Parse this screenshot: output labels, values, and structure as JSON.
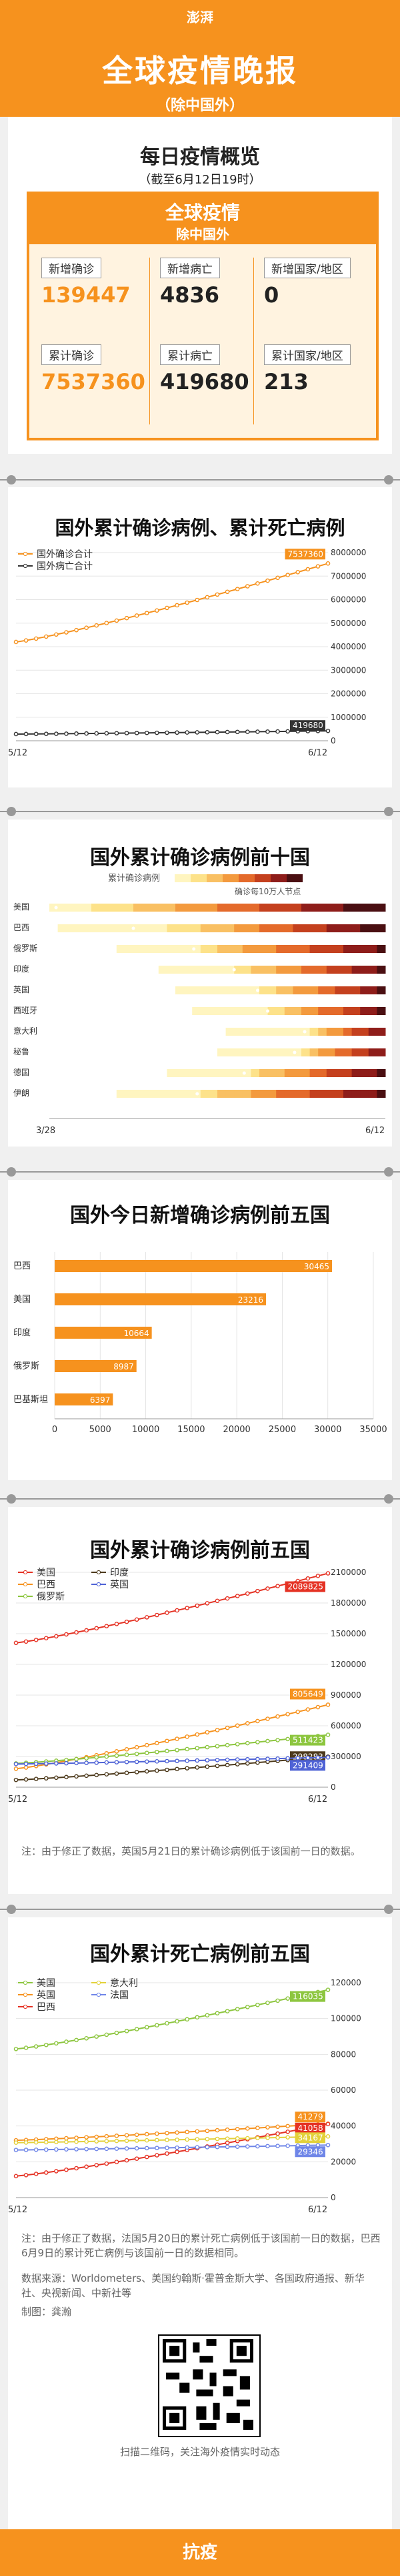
{
  "header": {
    "logo": "澎湃",
    "title": "全球疫情晚报",
    "subtitle": "（除中国外）",
    "footer": "抗疫"
  },
  "overview": {
    "title": "每日疫情概览",
    "asof": "（截至6月12日19时）",
    "box_title": "全球疫情",
    "box_sub": "除中国外",
    "stats": [
      {
        "label": "新增确诊",
        "value": "139447",
        "color": "#f6921e"
      },
      {
        "label": "新增病亡",
        "value": "4836",
        "color": "#333333"
      },
      {
        "label": "新增国家/地区",
        "value": "0",
        "color": "#333333"
      },
      {
        "label": "累计确诊",
        "value": "7537360",
        "color": "#f6921e"
      },
      {
        "label": "累计病亡",
        "value": "419680",
        "color": "#333333"
      },
      {
        "label": "累计国家/地区",
        "value": "213",
        "color": "#333333"
      }
    ]
  },
  "sections": {
    "cumulative": "国外累计确诊病例、累计死亡病例",
    "top10": "国外累计确诊病例前十国",
    "today5": "国外今日新增确诊病例前五国",
    "conf5": "国外累计确诊病例前五国",
    "death5": "国外累计死亡病例前五国"
  },
  "notes": {
    "conf_note": "注：由于修正了数据，英国5月21日的累计确诊病例低于该国前一日的数据。",
    "death_note": "注：由于修正了数据，法国5月20日的累计死亡病例低于该国前一日的数据，巴西6月9日的累计死亡病例与该国前一日的数据相同。",
    "source": "数据来源：Worldometers、美国约翰斯·霍普金斯大学、各国政府通报、新华社、央视新闻、中新社等",
    "author": "制图：龚瀚",
    "qr_caption": "扫描二维码，关注海外疫情实时动态"
  },
  "chart_data": [
    {
      "type": "line",
      "x_labels": [
        "5/12",
        "6/12"
      ],
      "points": 32,
      "ylim": [
        0,
        8000000
      ],
      "yticks": [
        0,
        1000000,
        2000000,
        3000000,
        4000000,
        5000000,
        6000000,
        7000000,
        8000000
      ],
      "series": [
        {
          "name": "国外确诊合计",
          "color": "#f6921e",
          "start": 4200000,
          "end": 7537360,
          "end_label": "7537360"
        },
        {
          "name": "国外病亡合计",
          "color": "#333333",
          "start": 285000,
          "end": 419680,
          "end_label": "419680"
        }
      ]
    },
    {
      "type": "heatmap",
      "title": "累计确诊病例",
      "note": "确诊每10万人节点",
      "x_labels": [
        "3/28",
        "6/12"
      ],
      "categories": [
        "美国",
        "巴西",
        "俄罗斯",
        "印度",
        "英国",
        "西班牙",
        "意大利",
        "秘鲁",
        "德国",
        "伊朗"
      ],
      "thresholds": [
        0.0,
        0.25,
        0.43,
        0.55,
        0.62,
        0.65,
        0.76,
        0.73,
        0.58,
        0.44
      ],
      "legend_colors": [
        "#fff5c0",
        "#fde28a",
        "#f9c063",
        "#f39a3e",
        "#e46a2b",
        "#c4401e",
        "#8e1d1a",
        "#4a0f12"
      ]
    },
    {
      "type": "bar",
      "orientation": "horizontal",
      "categories": [
        "巴西",
        "美国",
        "印度",
        "俄罗斯",
        "巴基斯坦"
      ],
      "values": [
        30465,
        23216,
        10664,
        8987,
        6397
      ],
      "xlim": [
        0,
        35000
      ],
      "xticks": [
        0,
        5000,
        10000,
        15000,
        20000,
        25000,
        30000,
        35000
      ],
      "color": "#f6921e"
    },
    {
      "type": "line",
      "x_labels": [
        "5/12",
        "6/12"
      ],
      "points": 32,
      "ylim": [
        0,
        2100000
      ],
      "yticks": [
        0,
        300000,
        600000,
        900000,
        1200000,
        1500000,
        1800000,
        2100000
      ],
      "series": [
        {
          "name": "美国",
          "color": "#e53224",
          "start": 1410000,
          "end": 2089825,
          "end_label": "2089825"
        },
        {
          "name": "巴西",
          "color": "#f6921e",
          "start": 180000,
          "end": 805649,
          "end_label": "805649"
        },
        {
          "name": "俄罗斯",
          "color": "#8dc63f",
          "start": 232000,
          "end": 511423,
          "end_label": "511423"
        },
        {
          "name": "印度",
          "color": "#4d3a1c",
          "start": 71000,
          "end": 298283,
          "end_label": "298283"
        },
        {
          "name": "英国",
          "color": "#4f63d6",
          "start": 226000,
          "end": 291409,
          "end_label": "291409"
        }
      ]
    },
    {
      "type": "line",
      "x_labels": [
        "5/12",
        "6/12"
      ],
      "points": 32,
      "ylim": [
        0,
        120000
      ],
      "yticks": [
        0,
        20000,
        40000,
        60000,
        80000,
        100000,
        120000
      ],
      "series": [
        {
          "name": "美国",
          "color": "#8dc63f",
          "start": 83000,
          "end": 116035,
          "end_label": "116035"
        },
        {
          "name": "英国",
          "color": "#f6921e",
          "start": 32000,
          "end": 41279,
          "end_label": "41279"
        },
        {
          "name": "巴西",
          "color": "#e53224",
          "start": 12000,
          "end": 41058,
          "end_label": "41058"
        },
        {
          "name": "意大利",
          "color": "#e3d13a",
          "start": 30700,
          "end": 34167,
          "end_label": "34167"
        },
        {
          "name": "法国",
          "color": "#6f86e8",
          "start": 26600,
          "end": 29346,
          "end_label": "29346"
        }
      ]
    }
  ]
}
